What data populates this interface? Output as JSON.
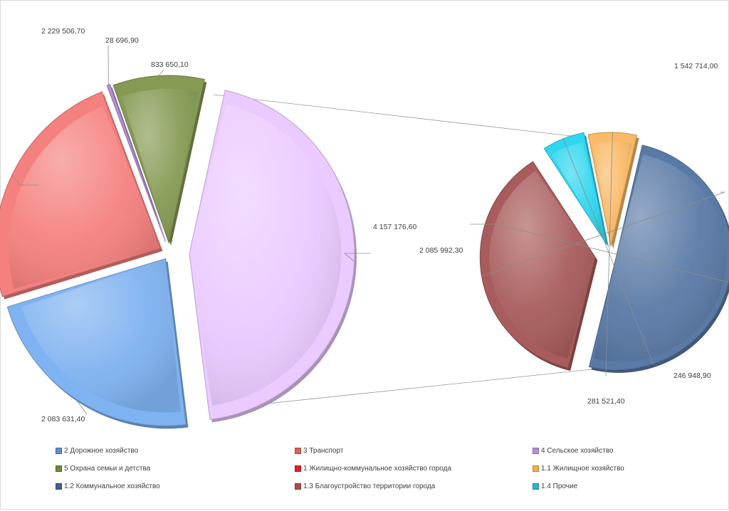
{
  "chart_data": {
    "type": "pie",
    "subtype": "bar-of-pie",
    "title": "",
    "main_pie": [
      {
        "name": "1 Жилищно-коммунальное  хозяйство города",
        "value": 4157176.6,
        "label": "4 157 176,60",
        "color": "#ebcaff"
      },
      {
        "name": "2 Дорожное хозяйство",
        "value": 2083631.4,
        "label": "2 083 631,40",
        "color": "#7fb2f0"
      },
      {
        "name": "3 Транспорт",
        "value": 2229506.7,
        "label": "2 229 506,70",
        "color": "#f4817f"
      },
      {
        "name": "4 Сельское хозяйство",
        "value": 28696.9,
        "label": "28 696,90",
        "color": "#b58fd4"
      },
      {
        "name": "5 Охрана семьи и детства",
        "value": 833650.1,
        "label": "833 650,10",
        "color": "#869a54"
      }
    ],
    "secondary_pie": [
      {
        "name": "1.2 Коммунальное хозяйство",
        "value": 2085992.3,
        "label": "2 085 992,30",
        "color": "#5a7aa6"
      },
      {
        "name": "1.3 Благоустройство территории города",
        "value": 1542714.0,
        "label": "1 542 714,00",
        "color": "#a85c5c"
      },
      {
        "name": "1.4 Прочие",
        "value": 246948.9,
        "label": "246 948,90",
        "color": "#2fd6ef"
      },
      {
        "name": "1.1 Жилищное хозяйство",
        "value": 281521.4,
        "label": "281 521,40",
        "color": "#f9b966"
      }
    ]
  },
  "legend": [
    {
      "label": "2 Дорожное хозяйство",
      "color": "#5b8fd6"
    },
    {
      "label": "3 Транспорт",
      "color": "#e0605a"
    },
    {
      "label": "4 Сельское хозяйство",
      "color": "#b58fd4"
    },
    {
      "label": "5 Охрана семьи и детства",
      "color": "#6d8a3c"
    },
    {
      "label": "1 Жилищно-коммунальное  хозяйство города",
      "color": "#e0202a"
    },
    {
      "label": "1.1 Жилищное хозяйство",
      "color": "#f6ae4a"
    },
    {
      "label": "1.2 Коммунальное хозяйство",
      "color": "#3f5f8f"
    },
    {
      "label": "1.3 Благоустройство территории города",
      "color": "#b04a4a"
    },
    {
      "label": "1.4 Прочие",
      "color": "#2bb5c9"
    }
  ]
}
